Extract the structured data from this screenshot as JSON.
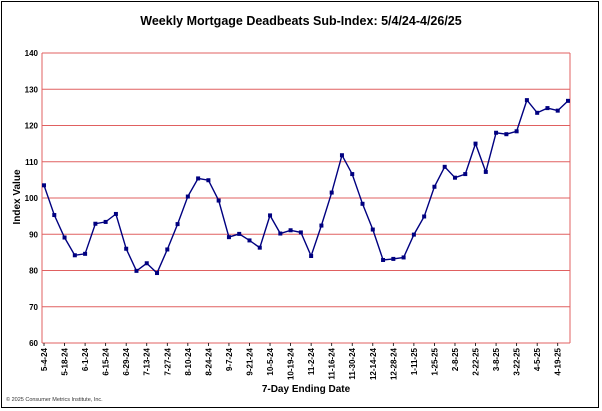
{
  "chart_data": {
    "type": "line",
    "title": "Weekly Mortgage Deadbeats Sub-Index: 5/4/24-4/26/25",
    "xlabel": "7-Day Ending Date",
    "ylabel": "Index Value",
    "ylim": [
      60,
      140
    ],
    "yticks": [
      "60",
      "70",
      "80",
      "90",
      "100",
      "110",
      "120",
      "130",
      "140"
    ],
    "grid": "horizontal",
    "grid_color": "#e06060",
    "line_color": "#000080",
    "x": [
      "5-4-24",
      "5-11-24",
      "5-18-24",
      "5-25-24",
      "6-1-24",
      "6-8-24",
      "6-15-24",
      "6-22-24",
      "6-29-24",
      "7-6-24",
      "7-13-24",
      "7-20-24",
      "7-27-24",
      "8-3-24",
      "8-10-24",
      "8-17-24",
      "8-24-24",
      "8-31-24",
      "9-7-24",
      "9-14-24",
      "9-21-24",
      "9-28-24",
      "10-5-24",
      "10-12-24",
      "10-19-24",
      "10-26-24",
      "11-2-24",
      "11-9-24",
      "11-16-24",
      "11-23-24",
      "11-30-24",
      "12-7-24",
      "12-14-24",
      "12-21-24",
      "12-28-24",
      "1-4-25",
      "1-11-25",
      "1-18-25",
      "1-25-25",
      "2-1-25",
      "2-8-25",
      "2-15-25",
      "2-22-25",
      "3-1-25",
      "3-8-25",
      "3-15-25",
      "3-22-25",
      "3-29-25",
      "4-5-25",
      "4-12-25",
      "4-19-25",
      "4-26-25"
    ],
    "xtick_labels": [
      "5-4-24",
      "5-18-24",
      "6-1-24",
      "6-15-24",
      "6-29-24",
      "7-13-24",
      "7-27-24",
      "8-10-24",
      "8-24-24",
      "9-7-24",
      "9-21-24",
      "10-5-24",
      "10-19-24",
      "11-2-24",
      "11-16-24",
      "11-30-24",
      "12-14-24",
      "12-28-24",
      "1-11-25",
      "1-25-25",
      "2-8-25",
      "2-22-25",
      "3-8-25",
      "3-22-25",
      "4-5-25",
      "4-19-25"
    ],
    "values": [
      103.5,
      95.3,
      89.1,
      84.2,
      84.6,
      92.9,
      93.4,
      95.6,
      86.0,
      79.9,
      82.0,
      79.3,
      85.8,
      92.8,
      100.4,
      105.4,
      104.9,
      99.3,
      89.2,
      90.1,
      88.3,
      86.3,
      95.2,
      90.2,
      91.1,
      90.5,
      84.0,
      92.4,
      101.5,
      111.8,
      106.6,
      98.4,
      91.3,
      82.9,
      83.2,
      83.6,
      89.9,
      94.9,
      103.1,
      108.6,
      105.6,
      106.6,
      115.0,
      107.2,
      118.0,
      117.6,
      118.4,
      127.0,
      123.5,
      124.8,
      124.1,
      126.8
    ]
  },
  "copyright": "© 2025 Consumer Metrics Institute, Inc."
}
